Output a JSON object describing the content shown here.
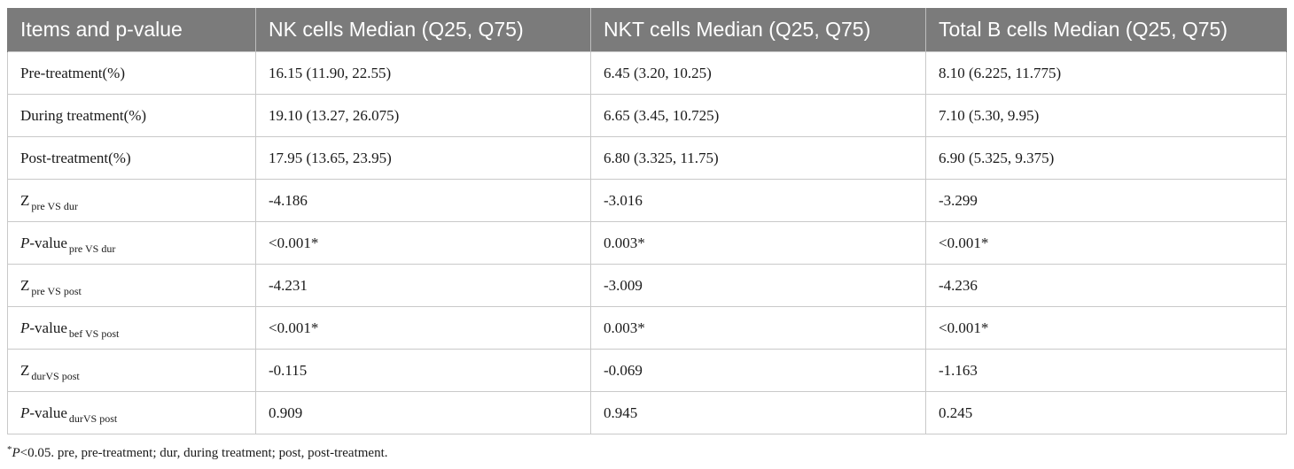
{
  "table": {
    "headers": [
      "Items and p-value",
      "NK cells Median (Q25, Q75)",
      "NKT cells Median (Q25, Q75)",
      "Total B cells Median (Q25, Q75)"
    ],
    "rows": [
      {
        "label_main": "Pre-treatment(%)",
        "label_italic": "",
        "label_rest": "",
        "label_sub": "",
        "nk": "16.15 (11.90, 22.55)",
        "nkt": "6.45 (3.20, 10.25)",
        "b": "8.10 (6.225, 11.775)"
      },
      {
        "label_main": "During treatment(%)",
        "label_italic": "",
        "label_rest": "",
        "label_sub": "",
        "nk": "19.10 (13.27, 26.075)",
        "nkt": "6.65 (3.45, 10.725)",
        "b": "7.10 (5.30, 9.95)"
      },
      {
        "label_main": "Post-treatment(%)",
        "label_italic": "",
        "label_rest": "",
        "label_sub": "",
        "nk": "17.95 (13.65, 23.95)",
        "nkt": "6.80 (3.325, 11.75)",
        "b": "6.90 (5.325, 9.375)"
      },
      {
        "label_main": "Z",
        "label_italic": "",
        "label_rest": "",
        "label_sub": "pre VS dur",
        "nk": "-4.186",
        "nkt": "-3.016",
        "b": "-3.299"
      },
      {
        "label_main": "",
        "label_italic": "P",
        "label_rest": "-value",
        "label_sub": "pre VS dur",
        "nk": "<0.001*",
        "nkt": "0.003*",
        "b": "<0.001*"
      },
      {
        "label_main": "Z",
        "label_italic": "",
        "label_rest": "",
        "label_sub": "pre VS post",
        "nk": "-4.231",
        "nkt": "-3.009",
        "b": "-4.236"
      },
      {
        "label_main": "",
        "label_italic": "P",
        "label_rest": "-value",
        "label_sub": "bef VS post",
        "nk": "<0.001*",
        "nkt": "0.003*",
        "b": "<0.001*"
      },
      {
        "label_main": "Z",
        "label_italic": "",
        "label_rest": "",
        "label_sub": "durVS post",
        "nk": "-0.115",
        "nkt": "-0.069",
        "b": "-1.163"
      },
      {
        "label_main": "",
        "label_italic": "P",
        "label_rest": "-value",
        "label_sub": "durVS post",
        "nk": "0.909",
        "nkt": "0.945",
        "b": "0.245"
      }
    ]
  },
  "footnote": {
    "star": "*",
    "italic": "P",
    "text": "<0.05. pre, pre-treatment; dur, during treatment; post, post-treatment."
  }
}
